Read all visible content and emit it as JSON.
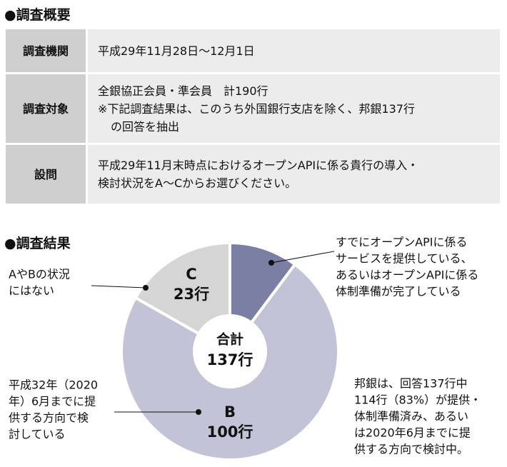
{
  "overview": {
    "title": "●調査概要",
    "rows": [
      {
        "label": "調査機関",
        "lines": [
          "平成29年11月28日～12月1日"
        ]
      },
      {
        "label": "調査対象",
        "lines": [
          "全銀協正会員・準会員　計190行",
          "※下記調査結果は、このうち外国銀行支店を除く、邦銀137行",
          "の回答を抽出"
        ]
      },
      {
        "label": "設問",
        "lines": [
          "平成29年11月末時点におけるオープンAPIに係る貴行の導入・",
          "検討状況をA～Cからお選びください。"
        ]
      }
    ]
  },
  "chart_data": {
    "type": "donut",
    "title": "●調査結果",
    "categories": [
      null,
      "B",
      "C"
    ],
    "values": [
      14,
      100,
      23
    ],
    "value_labels": [
      null,
      "100行",
      "23行"
    ],
    "colors": [
      "#7b7fa4",
      "#c2c3d7",
      "#d5d5d5"
    ],
    "center_title": "合計",
    "total": 137,
    "total_label": "137行",
    "annotations": [
      [
        "すでにオープンAPIに係る",
        "サービスを提供している、",
        "あるいはオープンAPIに係る",
        "体制準備が完了している"
      ],
      [
        "平成32年（2020",
        "年）6月までに提",
        "供する方向で検",
        "討している"
      ],
      [
        "AやBの状況",
        "にはない"
      ]
    ],
    "note": [
      "邦銀は、回答137行中",
      "114行（83%）が提供・",
      "体制準備済み、あるい",
      "は2020年6月までに提",
      "供する方向で検討中。"
    ]
  }
}
